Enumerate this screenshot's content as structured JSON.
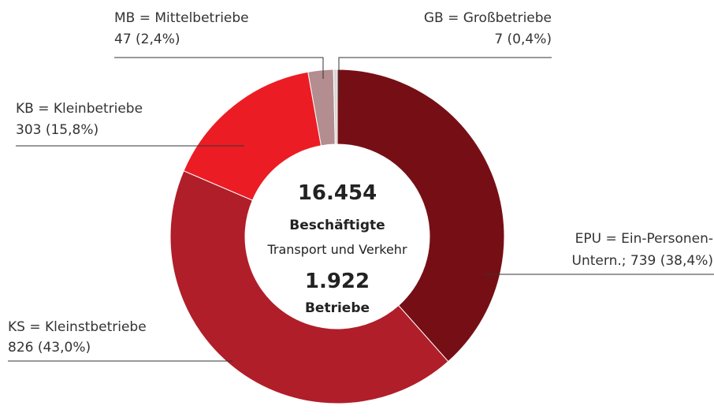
{
  "chart_data": {
    "type": "donut",
    "categories": [
      "EPU = Ein-Personen-",
      "KS = Kleinstbetriebe",
      "KB = Kleinbetriebe",
      "MB = Mittelbetriebe",
      "GB = Großbetriebe"
    ],
    "values": [
      739,
      826,
      303,
      47,
      7
    ],
    "value_labels": [
      "Untern.; 739 (38,4%)",
      "826 (43,0%)",
      "303 (15,8%)",
      "47 (2,4%)",
      "7 (0,4%)"
    ],
    "colors": [
      "#760f15",
      "#b01e29",
      "#ec1c24",
      "#b38d8f",
      "#d9d6d6"
    ],
    "center_text": [
      "16.454",
      "Beschäftigte",
      "Transport und Verkehr",
      "1.922",
      "Betriebe"
    ]
  }
}
